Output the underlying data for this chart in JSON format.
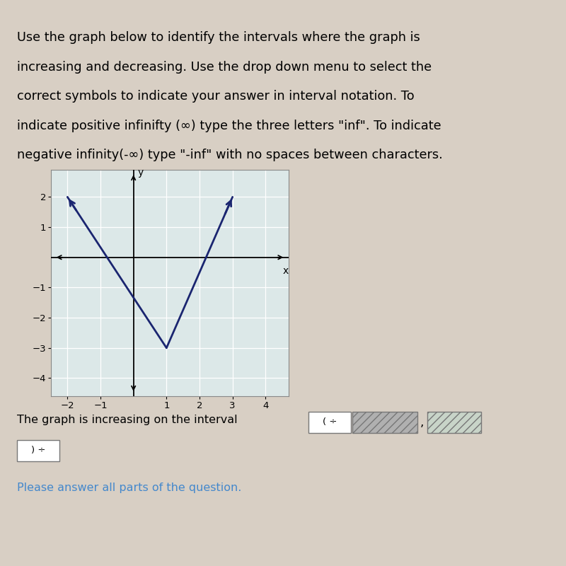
{
  "graph_xlim": [
    -2.5,
    4.7
  ],
  "graph_ylim": [
    -4.6,
    2.9
  ],
  "xticks": [
    -2,
    -1,
    1,
    2,
    3,
    4
  ],
  "yticks": [
    -4,
    -3,
    -2,
    -1,
    1,
    2
  ],
  "vertex_x": 1,
  "vertex_y": -3,
  "left_point_x": -2,
  "left_point_y": 2,
  "right_point_x": 3,
  "right_point_y": 2,
  "line_color": "#1a2570",
  "line_width": 2.0,
  "bg_color": "#d8cfc4",
  "graph_bg": "#dce8e8",
  "graph_border": "#888888",
  "grid_color": "#ffffff",
  "axis_color": "#000000",
  "text_color": "#000000",
  "interval_text": "The graph is increasing on the interval",
  "answer_text": "Please answer all parts of the question.",
  "answer_color": "#4488cc",
  "body_text_line1": "Use the graph below to identify the intervals where the graph is",
  "body_text_line2": "increasing and decreasing. Use the drop down menu to select the",
  "body_text_line3": "correct symbols to indicate your answer in interval notation. To",
  "body_text_line4": "indicate positive infinifty (∞) type the three letters \"inf\". To indicate",
  "body_text_line5": "negative infinity(-∞) type \"-inf\" with no spaces between characters."
}
